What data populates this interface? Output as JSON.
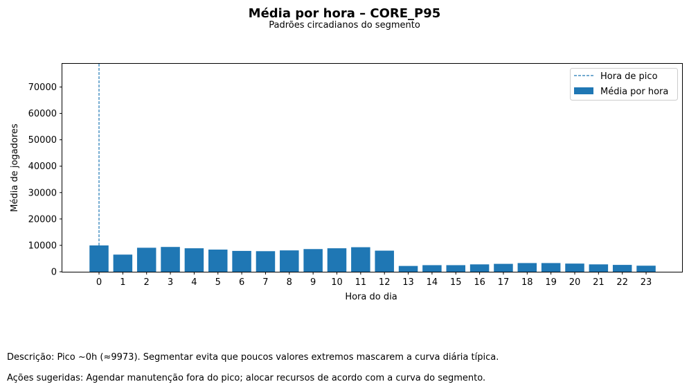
{
  "chart_data": {
    "type": "bar",
    "title": "Média por hora – CORE_P95",
    "subtitle": "Padrões circadianos do segmento",
    "xlabel": "Hora do dia",
    "ylabel": "Média de jogadores",
    "categories": [
      "0",
      "1",
      "2",
      "3",
      "4",
      "5",
      "6",
      "7",
      "8",
      "9",
      "10",
      "11",
      "12",
      "13",
      "14",
      "15",
      "16",
      "17",
      "18",
      "19",
      "20",
      "21",
      "22",
      "23"
    ],
    "series": [
      {
        "name": "Média por hora",
        "color": "#1f77b4",
        "values": [
          9973,
          6500,
          9100,
          9400,
          8900,
          8400,
          7900,
          7800,
          8100,
          8600,
          8900,
          9300,
          8000,
          2200,
          2500,
          2500,
          2800,
          3000,
          3300,
          3300,
          3100,
          2800,
          2600,
          2300
        ]
      }
    ],
    "peak_line": {
      "name": "Hora de pico",
      "x": 0,
      "color": "#1f77b4",
      "style": "dashed"
    },
    "ylim": [
      0,
      78800
    ],
    "yticks": [
      0,
      10000,
      20000,
      30000,
      40000,
      50000,
      60000,
      70000
    ],
    "grid": false,
    "legend_position": "top-right"
  },
  "notes": {
    "description": "Descrição: Pico ~0h (≈9973). Segmentar evita que poucos valores extremos mascarem a curva diária típica.",
    "actions": "Ações sugeridas: Agendar manutenção fora do pico; alocar recursos de acordo com a curva do segmento."
  }
}
